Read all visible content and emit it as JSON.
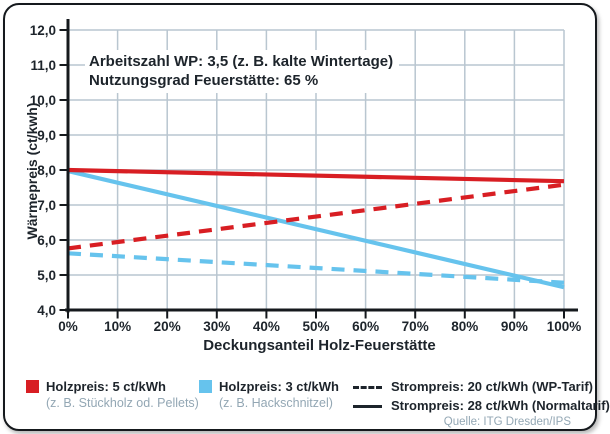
{
  "annotation": {
    "line1": "Arbeitszahl WP: 3,5 (z. B. kalte Wintertage)",
    "line2": "Nutzungsgrad Feuerstätte: 65 %"
  },
  "colors": {
    "red": "#d81e23",
    "blue": "#66c3ed",
    "grid": "#b9c6d0",
    "axis": "#15191d",
    "dark_text": "#1d242b",
    "sub_text": "#93a7b4"
  },
  "chart_data": {
    "type": "line",
    "xlabel": "Deckungsanteil Holz-Feuerstätte",
    "ylabel": "Wärmepreis (ct/kwh)",
    "xlim": [
      0,
      100
    ],
    "ylim": [
      4,
      12
    ],
    "grid": true,
    "x_ticks": [
      0,
      10,
      20,
      30,
      40,
      50,
      60,
      70,
      80,
      90,
      100
    ],
    "x_tick_labels": [
      "0%",
      "10%",
      "20%",
      "30%",
      "40%",
      "50%",
      "60%",
      "70%",
      "80%",
      "90%",
      "100%"
    ],
    "y_ticks": [
      4,
      5,
      6,
      7,
      8,
      9,
      10,
      11,
      12
    ],
    "y_tick_labels": [
      "4,0",
      "5,0",
      "6,0",
      "7,0",
      "8,0",
      "9,0",
      "10,0",
      "11,0",
      "12,0"
    ],
    "series": [
      {
        "name": "Holzpreis 3 ct/kWh, Strompreis 28 ct/kWh (Normaltarif)",
        "color": "blue",
        "style": "solid",
        "x": [
          0,
          100
        ],
        "y": [
          7.97,
          4.65
        ]
      },
      {
        "name": "Holzpreis 3 ct/kWh, Strompreis 20 ct/kWh (WP-Tarif)",
        "color": "blue",
        "style": "dashed",
        "x": [
          0,
          100
        ],
        "y": [
          5.62,
          4.78
        ]
      },
      {
        "name": "Holzpreis 5 ct/kWh, Strompreis 28 ct/kWh (Normaltarif)",
        "color": "red",
        "style": "solid",
        "x": [
          0,
          100
        ],
        "y": [
          8.0,
          7.68
        ]
      },
      {
        "name": "Holzpreis 5 ct/kWh, Strompreis 20 ct/kWh (WP-Tarif)",
        "color": "red",
        "style": "dashed",
        "x": [
          0,
          100
        ],
        "y": [
          5.76,
          7.58
        ]
      }
    ],
    "legend_position": "bottom"
  },
  "legend": {
    "holz5": {
      "label": "Holzpreis: 5 ct/kWh",
      "sub": "(z. B. Stückholz od. Pellets)"
    },
    "holz3": {
      "label": "Holzpreis: 3 ct/kWh",
      "sub": "(z. B. Hackschnitzel)"
    },
    "strom20": {
      "label": "Strompreis: 20 ct/kWh (WP-Tarif)"
    },
    "strom28": {
      "label": "Strompreis: 28 ct/kWh (Normaltarif)"
    }
  },
  "source": "Quelle: ITG Dresden/IPS"
}
